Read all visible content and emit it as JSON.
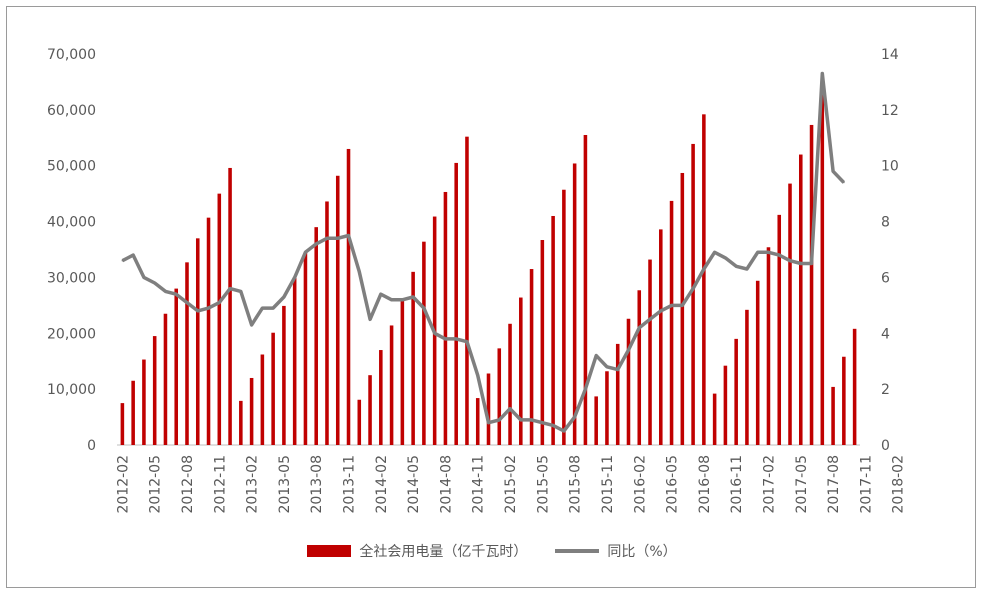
{
  "chart_data": {
    "type": "bar",
    "bar_color": "#c00000",
    "line_color": "#7f7f7f",
    "x_tick_labels": [
      "2012-02",
      "2012-05",
      "2012-08",
      "2012-11",
      "2013-02",
      "2013-05",
      "2013-08",
      "2013-11",
      "2014-02",
      "2014-05",
      "2014-08",
      "2014-11",
      "2015-02",
      "2015-05",
      "2015-08",
      "2015-11",
      "2016-02",
      "2016-05",
      "2016-08",
      "2016-11",
      "2017-02",
      "2017-05",
      "2017-08",
      "2017-11",
      "2018-02"
    ],
    "y_left_ticks": [
      "0",
      "10,000",
      "20,000",
      "30,000",
      "40,000",
      "50,000",
      "60,000",
      "70,000"
    ],
    "y_right_ticks": [
      "0",
      "2",
      "4",
      "6",
      "8",
      "10",
      "12",
      "14"
    ],
    "ylim_left": [
      0,
      70000
    ],
    "ylim_right": [
      0,
      14
    ],
    "legend_position": "bottom",
    "grid": false,
    "series": [
      {
        "name": "全社会用电量（亿千瓦时）",
        "type": "bar",
        "axis": "left",
        "values": [
          7500,
          11500,
          15300,
          19500,
          23500,
          28000,
          32700,
          37000,
          40700,
          45000,
          49600,
          7900,
          12000,
          16200,
          20100,
          24900,
          30000,
          34500,
          39000,
          43600,
          48200,
          53000,
          8100,
          12500,
          17000,
          21400,
          26000,
          31000,
          36400,
          40900,
          45300,
          50500,
          55200,
          8400,
          12800,
          17300,
          21700,
          26400,
          31500,
          36700,
          41000,
          45700,
          50400,
          55500,
          8700,
          13200,
          18100,
          22600,
          27700,
          33200,
          38600,
          43700,
          48700,
          53900,
          59200,
          9200,
          14200,
          19000,
          24200,
          29400,
          35400,
          41200,
          46800,
          52000,
          57300,
          63100,
          10400,
          15800,
          20800
        ]
      },
      {
        "name": "同比（%）",
        "type": "line",
        "axis": "right",
        "values": [
          6.6,
          6.8,
          6.0,
          5.8,
          5.5,
          5.4,
          5.1,
          4.8,
          4.9,
          5.1,
          5.6,
          5.5,
          4.3,
          4.9,
          4.9,
          5.3,
          6.0,
          6.9,
          7.2,
          7.4,
          7.4,
          7.5,
          6.2,
          4.5,
          5.4,
          5.2,
          5.2,
          5.3,
          4.9,
          4.0,
          3.8,
          3.8,
          3.7,
          2.5,
          0.8,
          0.9,
          1.3,
          0.9,
          0.9,
          0.8,
          0.7,
          0.5,
          1.0,
          2.0,
          3.2,
          2.8,
          2.7,
          3.4,
          4.2,
          4.5,
          4.8,
          5.0,
          5.0,
          5.6,
          6.3,
          6.9,
          6.7,
          6.4,
          6.3,
          6.9,
          6.9,
          6.8,
          6.6,
          6.5,
          6.5,
          13.3,
          9.8,
          9.4
        ]
      }
    ]
  }
}
